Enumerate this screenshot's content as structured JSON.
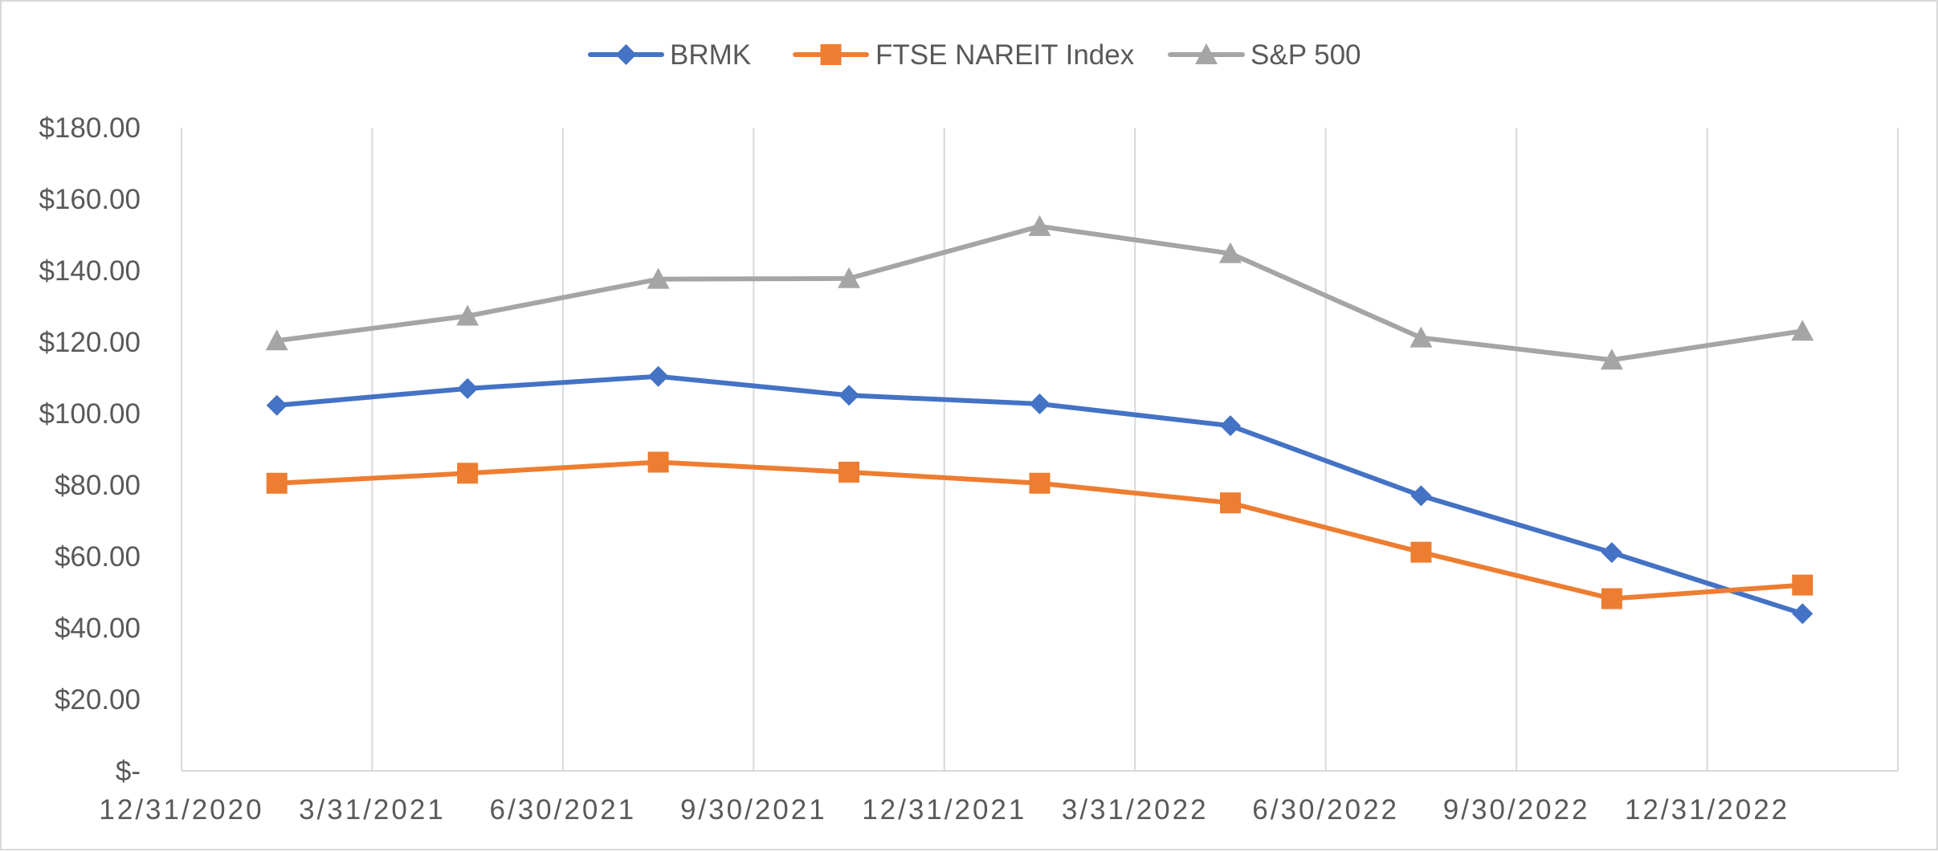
{
  "chart_data": {
    "type": "line",
    "categories": [
      "12/31/2020",
      "3/31/2021",
      "6/30/2021",
      "9/30/2021",
      "12/31/2021",
      "3/31/2022",
      "6/30/2022",
      "9/30/2022",
      "12/31/2022"
    ],
    "series": [
      {
        "name": "BRMK",
        "marker": "diamond",
        "color": "#4472c4",
        "values": [
          102.3,
          107.0,
          110.4,
          105.1,
          102.7,
          96.6,
          77.0,
          61.1,
          44.0
        ]
      },
      {
        "name": "FTSE NAREIT Index",
        "marker": "square",
        "color": "#ed7d31",
        "values": [
          80.5,
          83.3,
          86.4,
          83.6,
          80.5,
          75.0,
          61.2,
          48.2,
          52.0
        ]
      },
      {
        "name": "S&P 500",
        "marker": "triangle",
        "color": "#a5a5a5",
        "values": [
          120.4,
          127.3,
          137.6,
          137.8,
          152.4,
          144.8,
          121.2,
          115.0,
          123.1
        ]
      }
    ],
    "y_ticks": [
      "$-",
      "$20.00",
      "$40.00",
      "$60.00",
      "$80.00",
      "$100.00",
      "$120.00",
      "$140.00",
      "$160.00",
      "$180.00"
    ],
    "ylim": [
      0,
      180
    ],
    "y_step": 20,
    "grid": "vertical",
    "legend": "top-center"
  }
}
